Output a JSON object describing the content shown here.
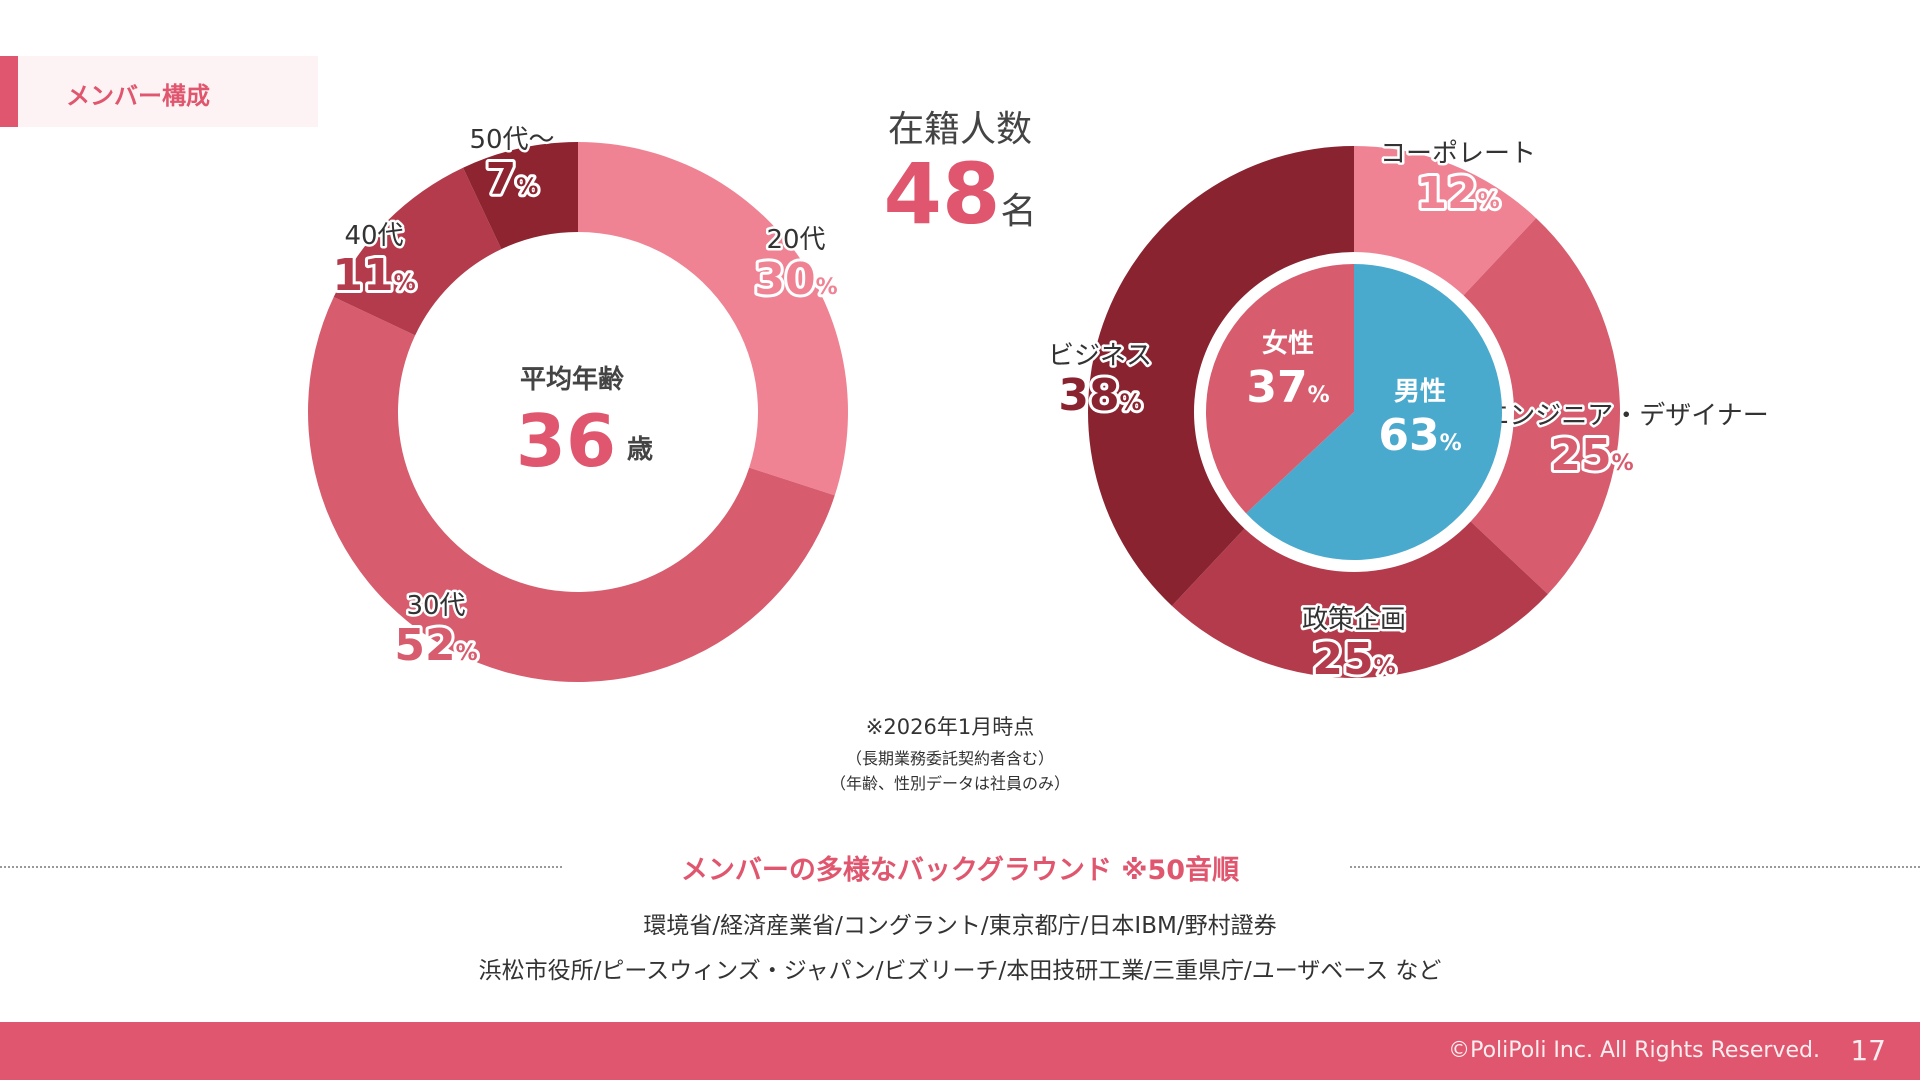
{
  "header": {
    "section_label": "メンバー構成"
  },
  "total": {
    "label": "在籍人数",
    "value": "48",
    "unit": "名"
  },
  "chart_data": [
    {
      "type": "pie",
      "variant": "donut",
      "center_title": "平均年齢",
      "center_value": "36",
      "center_unit": "歳",
      "unit_suffix": "%",
      "slices": [
        {
          "label": "20代",
          "value": 30,
          "color": "#ef8393"
        },
        {
          "label": "30代",
          "value": 52,
          "color": "#d75c6e"
        },
        {
          "label": "40代",
          "value": 11,
          "color": "#b43b4c"
        },
        {
          "label": "50代～",
          "value": 7,
          "color": "#8e2430"
        }
      ]
    },
    {
      "type": "pie",
      "variant": "donut",
      "unit_suffix": "%",
      "slices": [
        {
          "label": "コーポレート",
          "value": 12,
          "color": "#ef8393"
        },
        {
          "label": "エンジニア・デザイナー",
          "value": 25,
          "color": "#d75c6e"
        },
        {
          "label": "政策企画",
          "value": 25,
          "color": "#b43b4c"
        },
        {
          "label": "ビジネス",
          "value": 38,
          "color": "#8a2330"
        }
      ]
    },
    {
      "type": "pie",
      "unit_suffix": "%",
      "slices": [
        {
          "label": "男性",
          "value": 63,
          "color": "#4aaacd"
        },
        {
          "label": "女性",
          "value": 37,
          "color": "#d75c6e"
        }
      ]
    }
  ],
  "notes": {
    "line1": "※2026年1月時点",
    "line2": "（長期業務委託契約者含む）",
    "line3": "（年齢、性別データは社員のみ）"
  },
  "background": {
    "title": "メンバーの多様なバックグラウンド ※50音順",
    "line1": "環境省/経済産業省/コングラント/東京都庁/日本IBM/野村證券",
    "line2": "浜松市役所/ピースウィンズ・ジャパン/ビズリーチ/本田技研工業/三重県庁/ユーザベース など"
  },
  "footer": {
    "copyright": "©PoliPoli Inc. All Rights Reserved.",
    "page_number": "17"
  }
}
